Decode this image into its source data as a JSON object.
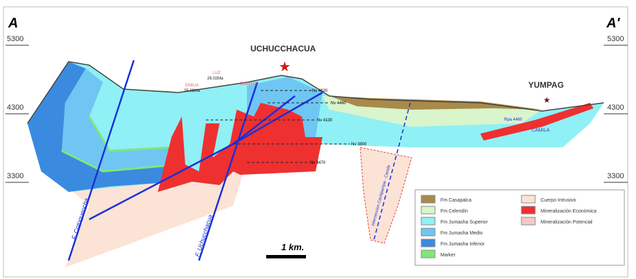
{
  "section": {
    "start_label": "A",
    "end_label": "A'"
  },
  "elevations": [
    "5300",
    "4300",
    "3300"
  ],
  "sites": {
    "main": "UCHUCCHACUA",
    "secondary": "YUMPAG"
  },
  "veins": [
    {
      "name": "EMILIA",
      "age": "25.08Ma"
    },
    {
      "name": "LUZ",
      "age": "26.02Ma"
    },
    {
      "name": "DOMINIK",
      "age": ""
    }
  ],
  "levels": [
    "Nv 4620",
    "Nv 4460",
    "Nv 4130",
    "Nv 3800",
    "Nv 3470"
  ],
  "yumpag_labels": {
    "level": "Rpa 4460",
    "body": "CAMILA"
  },
  "faults": [
    "F. Cotoqueocha",
    "F. Uchucchacua",
    "Interseccion Cachipampa - Camila"
  ],
  "scale_bar": "1 km.",
  "legend": [
    {
      "label": "Fm Casapalca",
      "color": "#a88a4a"
    },
    {
      "label": "Fm Celendín",
      "color": "#d8f5cc"
    },
    {
      "label": "Fm Jumasha Superior",
      "color": "#8ff0f5"
    },
    {
      "label": "Fm Jumasha Medio",
      "color": "#6fc6f2"
    },
    {
      "label": "Fm Jumasha Inferior",
      "color": "#3a8be0"
    },
    {
      "label": "Marker",
      "color": "#7fe87a"
    },
    {
      "label": "Cuerpo Intrusivo",
      "color": "#fbe3d6"
    },
    {
      "label": "Mineralización Económica",
      "color": "#ee3030"
    },
    {
      "label": "Mineralización Potencial",
      "color": "#f8c8c8"
    }
  ]
}
